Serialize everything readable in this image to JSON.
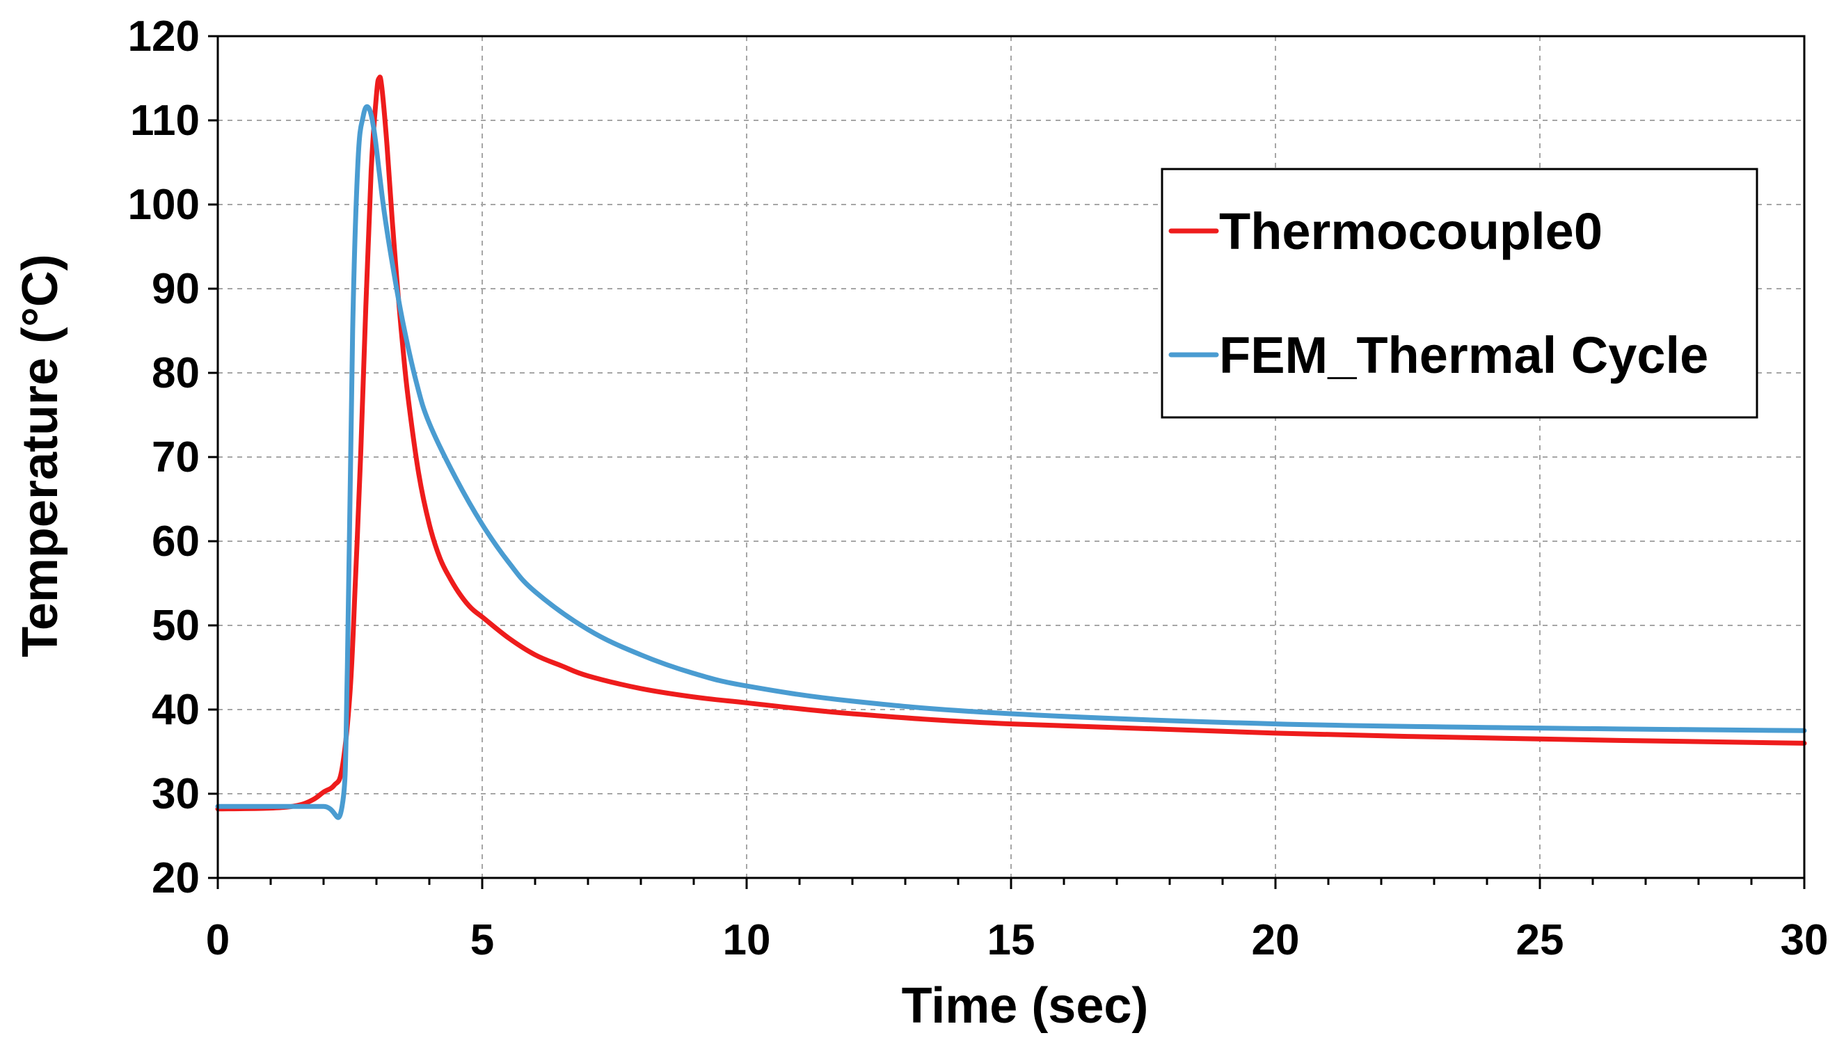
{
  "chart_data": {
    "type": "line",
    "title": "",
    "xlabel": "Time (sec)",
    "ylabel": "Temperature (°C)",
    "xlim": [
      0,
      30
    ],
    "ylim": [
      20,
      120
    ],
    "xticks": [
      0,
      5,
      10,
      15,
      20,
      25,
      30
    ],
    "yticks": [
      20,
      30,
      40,
      50,
      60,
      70,
      80,
      90,
      100,
      110,
      120
    ],
    "x_minor_step": 1,
    "grid": true,
    "legend_position": "top-right",
    "series": [
      {
        "name": "Thermocouple0",
        "color": "#ee1c1c",
        "x": [
          0,
          1,
          1.5,
          1.8,
          2.0,
          2.2,
          2.35,
          2.5,
          2.6,
          2.7,
          2.8,
          2.9,
          3.0,
          3.05,
          3.1,
          3.2,
          3.3,
          3.4,
          3.5,
          3.6,
          3.8,
          4.0,
          4.2,
          4.4,
          4.6,
          4.8,
          5.0,
          5.5,
          6.0,
          6.5,
          7.0,
          8.0,
          9.0,
          10.0,
          12.0,
          15.0,
          20.0,
          25.0,
          30.0
        ],
        "y": [
          28.2,
          28.3,
          28.6,
          29.3,
          30.2,
          31.0,
          33.0,
          42.0,
          55.0,
          70.0,
          88.0,
          104.0,
          113.0,
          115.0,
          114.0,
          107.0,
          98.0,
          90.0,
          83.0,
          77.0,
          68.0,
          62.0,
          58.0,
          55.5,
          53.5,
          52.0,
          51.0,
          48.5,
          46.5,
          45.2,
          44.0,
          42.5,
          41.5,
          40.8,
          39.5,
          38.3,
          37.2,
          36.5,
          36.0
        ]
      },
      {
        "name": "FEM_Thermal Cycle",
        "color": "#4a9cd1",
        "x": [
          0,
          1,
          2,
          2.35,
          2.45,
          2.55,
          2.65,
          2.75,
          2.85,
          2.95,
          3.05,
          3.15,
          3.3,
          3.5,
          3.75,
          4.0,
          4.5,
          5.0,
          5.5,
          6.0,
          7.0,
          8.0,
          9.0,
          10.0,
          12.0,
          15.0,
          20.0,
          25.0,
          30.0
        ],
        "y": [
          28.5,
          28.5,
          28.5,
          28.5,
          45.0,
          85.0,
          105.0,
          110.5,
          111.5,
          109.0,
          104.0,
          99.0,
          93.0,
          86.0,
          79.0,
          74.0,
          67.5,
          62.0,
          57.5,
          54.0,
          49.5,
          46.5,
          44.3,
          42.8,
          41.0,
          39.5,
          38.3,
          37.8,
          37.5
        ]
      }
    ]
  }
}
